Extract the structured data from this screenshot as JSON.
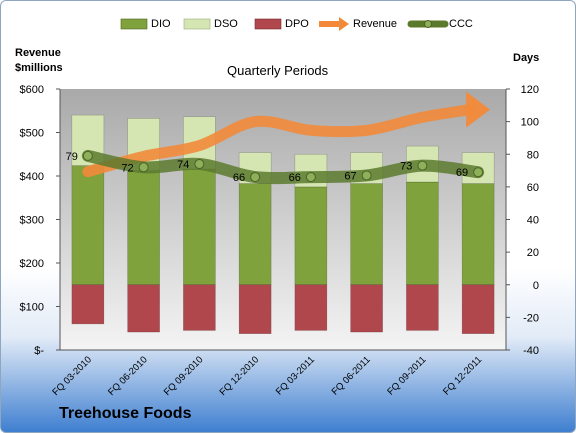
{
  "chart_data": {
    "type": "bar",
    "title": "Quarterly Periods",
    "company": "Treehouse Foods",
    "left_axis_title": [
      "Revenue",
      "$millions"
    ],
    "right_axis_title": "Days",
    "left_ticks": [
      "$600",
      "$500",
      "$400",
      "$300",
      "$200",
      "$100",
      "$-"
    ],
    "right_ticks": [
      "120",
      "100",
      "80",
      "60",
      "40",
      "20",
      "0",
      "-20",
      "-40"
    ],
    "categories": [
      "FQ 03-2010",
      "FQ 06-2010",
      "FQ 09-2010",
      "FQ 12-2010",
      "FQ 03-2011",
      "FQ 06-2011",
      "FQ 09-2011",
      "FQ 12-2011"
    ],
    "ylim_days": [
      -40,
      120
    ],
    "ylim_revenue": [
      0,
      600
    ],
    "series": [
      {
        "name": "DIO",
        "color": "#7fa23c",
        "values": [
          73,
          70,
          71,
          62,
          60,
          62,
          63,
          62
        ]
      },
      {
        "name": "DSO",
        "color": "#d6e6b3",
        "values": [
          31,
          32,
          32,
          19,
          20,
          19,
          22,
          19
        ]
      },
      {
        "name": "DPO",
        "color": "#b0474d",
        "values": [
          -24,
          -29,
          -28,
          -30,
          -28,
          -29,
          -28,
          -30
        ]
      },
      {
        "name": "Revenue",
        "color": "#f28a3a",
        "values": [
          410,
          445,
          470,
          525,
          505,
          505,
          535,
          555
        ]
      },
      {
        "name": "CCC",
        "color": "#5c7a2e",
        "values": [
          79,
          72,
          74,
          66,
          66,
          67,
          73,
          69
        ]
      }
    ],
    "ccc_labels": [
      "79",
      "72",
      "74",
      "66",
      "66",
      "67",
      "73",
      "69"
    ],
    "legend": [
      "DIO",
      "DSO",
      "DPO",
      "Revenue",
      "CCC"
    ],
    "legend_position": "top",
    "grid": false
  }
}
